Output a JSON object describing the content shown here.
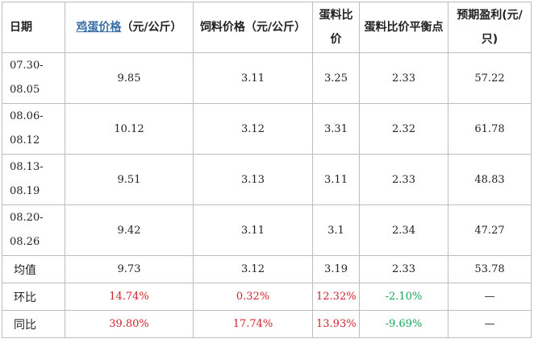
{
  "headers": {
    "date": "日期",
    "egg_price_link": "鸡蛋价格",
    "egg_price_unit": "（元/公斤）",
    "feed_price": "饲料价格（元/公斤）",
    "ratio": "蛋料比价",
    "breakeven": "蛋料比价平衡点",
    "profit": "预期盈利(元/只)"
  },
  "rows": [
    {
      "date": "07.30-08.05",
      "egg": "9.85",
      "feed": "3.11",
      "ratio": "3.25",
      "breakeven": "2.33",
      "profit": "57.22"
    },
    {
      "date": "08.06-08.12",
      "egg": "10.12",
      "feed": "3.12",
      "ratio": "3.31",
      "breakeven": "2.32",
      "profit": "61.78"
    },
    {
      "date": "08.13-08.19",
      "egg": "9.51",
      "feed": "3.13",
      "ratio": "3.11",
      "breakeven": "2.33",
      "profit": "48.83"
    },
    {
      "date": "08.20-08.26",
      "egg": "9.42",
      "feed": "3.11",
      "ratio": "3.1",
      "breakeven": "2.34",
      "profit": "47.27"
    }
  ],
  "average": {
    "label": "均值",
    "egg": "9.73",
    "feed": "3.12",
    "ratio": "3.19",
    "breakeven": "2.33",
    "profit": "53.78"
  },
  "mom": {
    "label": "环比",
    "egg": "14.74%",
    "feed": "0.32%",
    "ratio": "12.32%",
    "breakeven": "-2.10%",
    "profit": "—"
  },
  "yoy": {
    "label": "同比",
    "egg": "39.80%",
    "feed": "17.74%",
    "ratio": "13.93%",
    "breakeven": "-9.69%",
    "profit": "—"
  },
  "colors": {
    "positive": "#d2232a",
    "negative": "#17a554",
    "link": "#3a6ea8"
  }
}
